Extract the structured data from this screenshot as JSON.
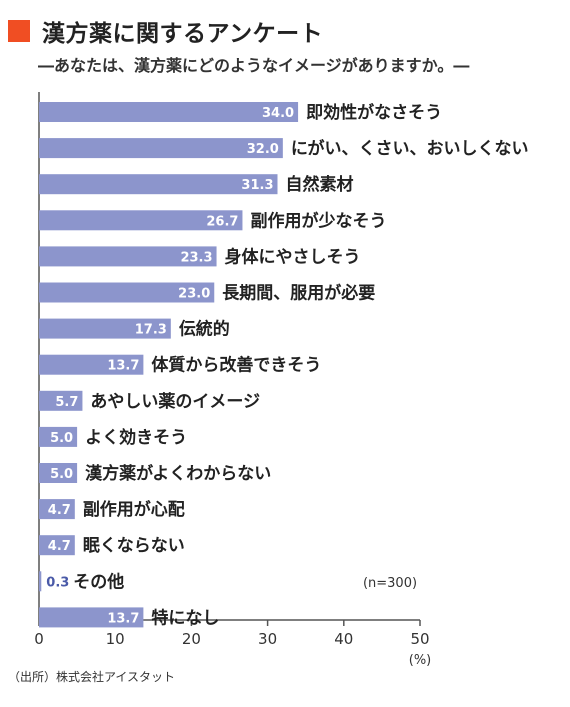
{
  "title": "漢方薬に関するアンケート",
  "subtitle": "―あなたは、漢方薬にどのようなイメージがありますか。―",
  "note": "(n=300)",
  "source": "（出所）株式会社アイスタット",
  "colors": {
    "bar": "#8c95cc",
    "accent": "#f04e23",
    "axis": "#555555",
    "grid": "#cfcfcf"
  },
  "chart_data": {
    "type": "bar",
    "orientation": "horizontal",
    "categories": [
      "即効性がなさそう",
      "にがい、くさい、おいしくない",
      "自然素材",
      "副作用が少なそう",
      "身体にやさしそう",
      "長期間、服用が必要",
      "伝統的",
      "体質から改善できそう",
      "あやしい薬のイメージ",
      "よく効きそう",
      "漢方薬がよくわからない",
      "副作用が心配",
      "眠くならない",
      "その他",
      "特になし"
    ],
    "values": [
      34.0,
      32.0,
      31.3,
      26.7,
      23.3,
      23.0,
      17.3,
      13.7,
      5.7,
      5.0,
      5.0,
      4.7,
      4.7,
      0.3,
      13.7
    ],
    "value_labels": [
      "34.0",
      "32.0",
      "31.3",
      "26.7",
      "23.3",
      "23.0",
      "17.3",
      "13.7",
      "5.7",
      "5.0",
      "5.0",
      "4.7",
      "4.7",
      "0.3",
      "13.7"
    ],
    "xlim": [
      0,
      50
    ],
    "xticks": [
      "0",
      "10",
      "20",
      "30",
      "40",
      "50"
    ],
    "xunit": "(%)",
    "grid": false
  }
}
